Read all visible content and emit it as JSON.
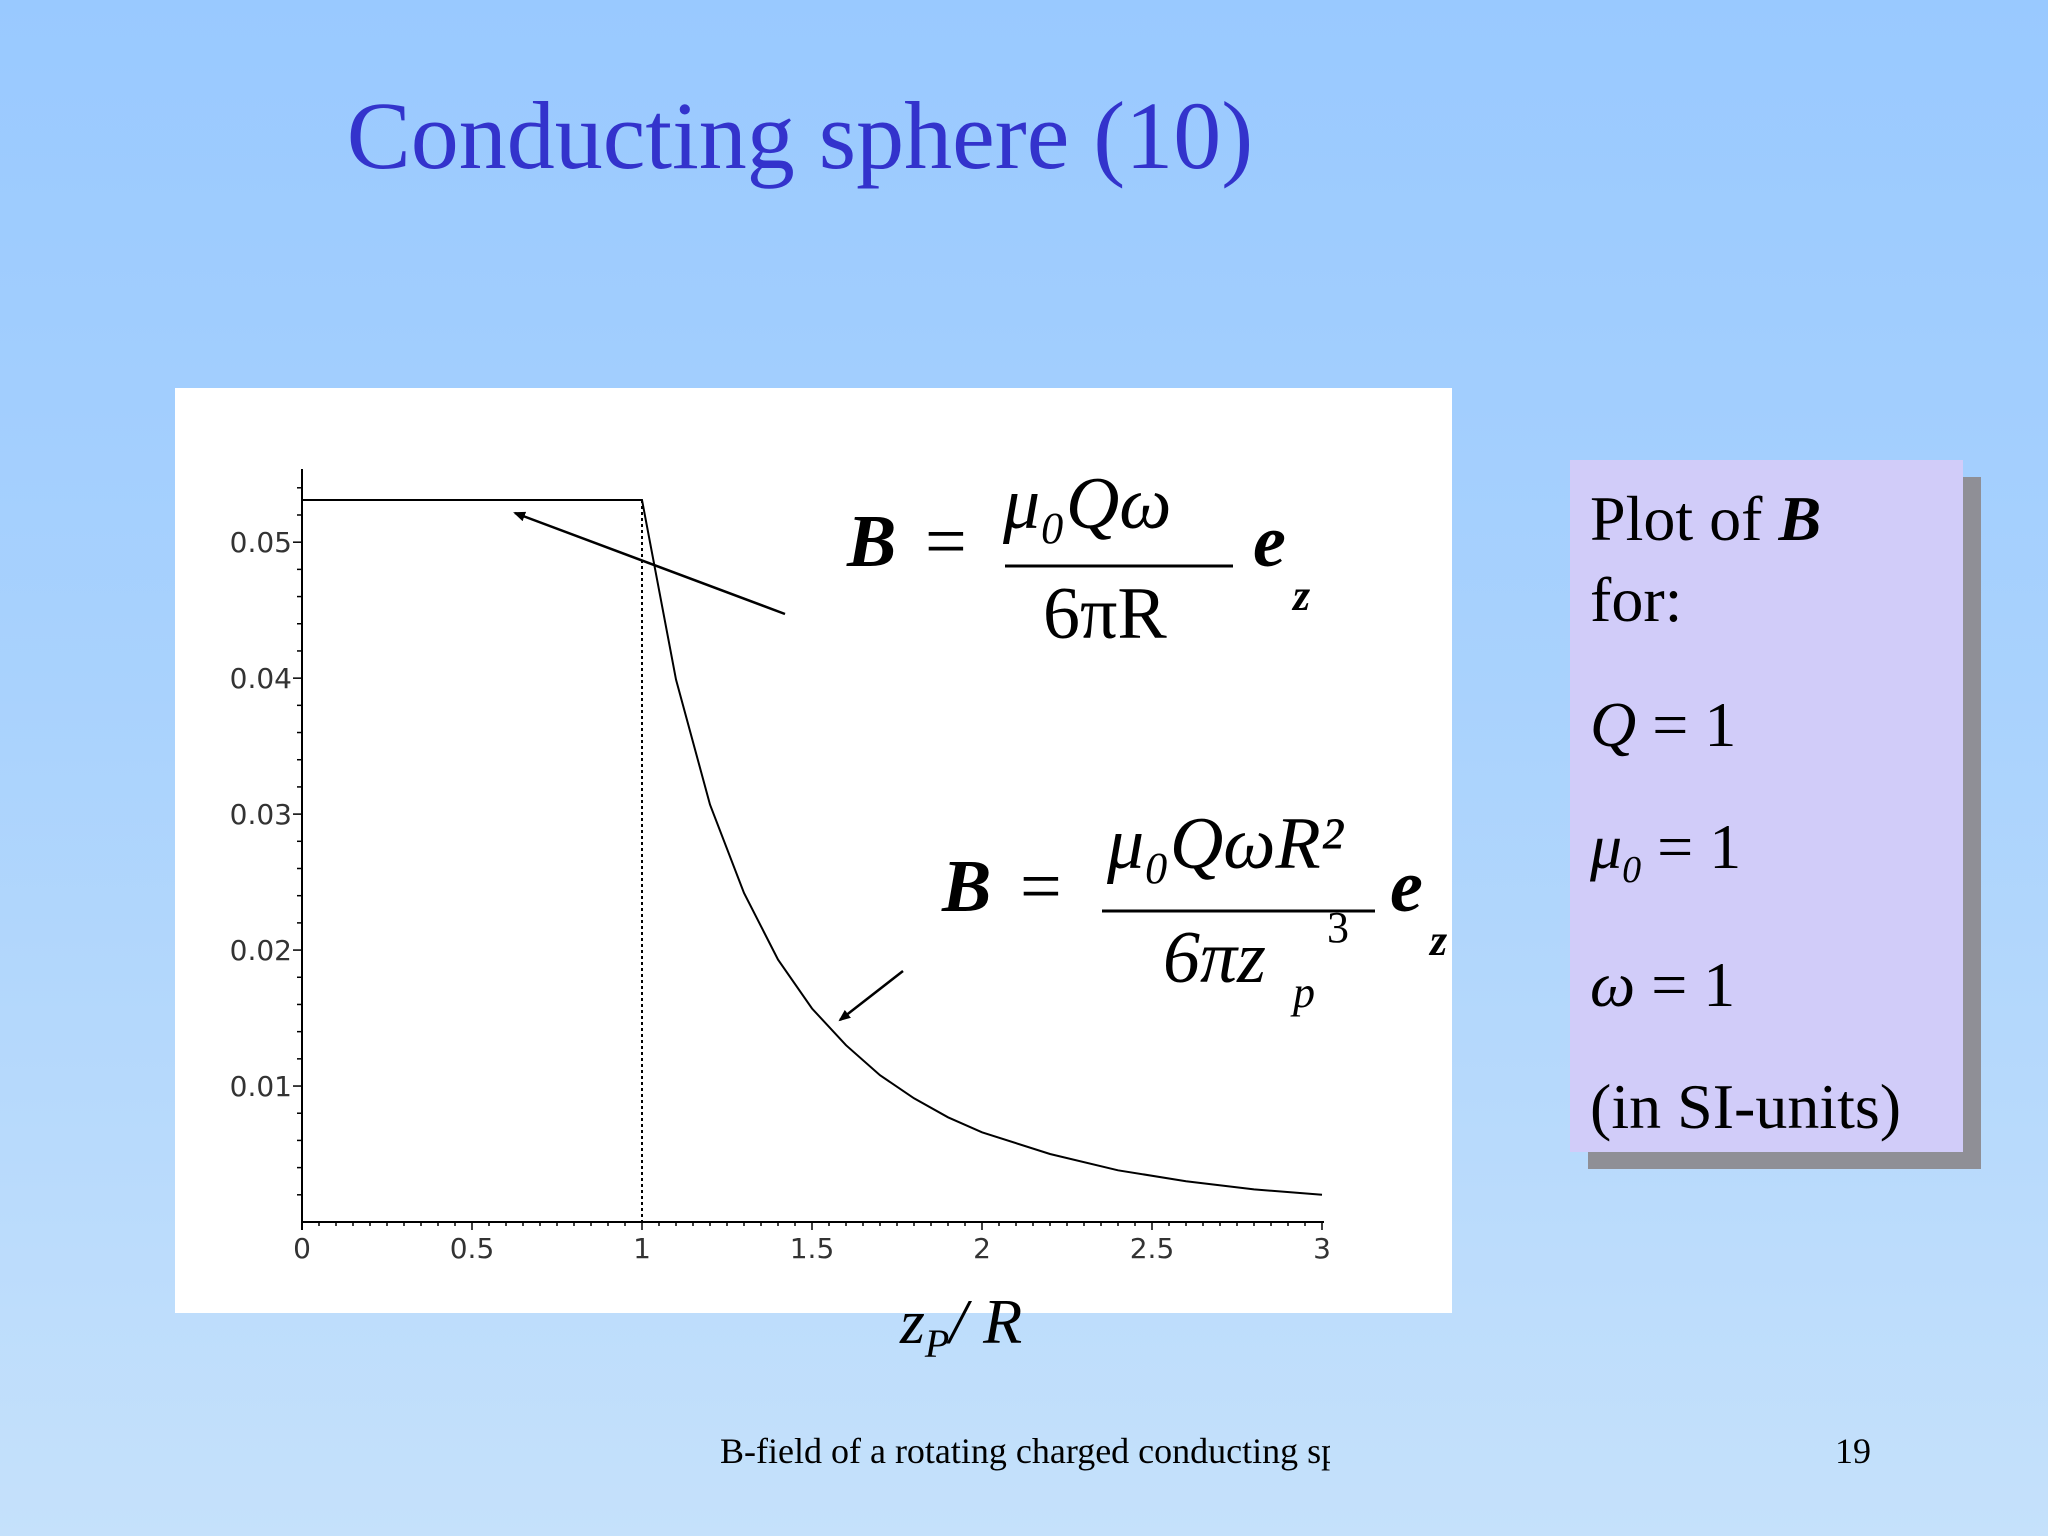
{
  "slide": {
    "title": "Conducting sphere (10)",
    "footer": "B-field of a rotating charged conducting sphere",
    "page_number": "19"
  },
  "formulas": {
    "inside": {
      "lhs": "B",
      "numerator": "μ₀Qω",
      "denominator": "6πR",
      "rhs": "e",
      "rhs_sub": "z"
    },
    "outside": {
      "lhs": "B",
      "numerator": "μ₀QωR²",
      "denominator": "6πz",
      "denominator_sub": "p",
      "denominator_sup": "3",
      "rhs": "e",
      "rhs_sub": "z"
    }
  },
  "info_box": {
    "line1_text": "Plot of ",
    "line1_symbol": "B",
    "line2": "for:",
    "q_symbol": "Q",
    "q_value": " = 1",
    "mu_symbol": "μ",
    "mu_sub": "0",
    "mu_value": " = 1",
    "omega_symbol": "ω",
    "omega_value": " = 1",
    "units": "(in SI-units)"
  },
  "chart_data": {
    "type": "line",
    "x_label_main": "z",
    "x_label_sub": "P",
    "x_label_rest": "/ R",
    "x_tick_labels": [
      "0",
      "0.5",
      "1",
      "1.5",
      "2",
      "2.5",
      "3"
    ],
    "y_tick_labels": [
      "0.01",
      "0.02",
      "0.03",
      "0.04",
      "0.05"
    ],
    "xlim": [
      0,
      3
    ],
    "ylim": [
      0,
      0.0545
    ],
    "boundary_x": 1,
    "series": [
      {
        "x": [
          0,
          0.5,
          1.0,
          1.1,
          1.2,
          1.3,
          1.4,
          1.5,
          1.6,
          1.7,
          1.8,
          1.9,
          2.0,
          2.2,
          2.4,
          2.6,
          2.8,
          3.0
        ],
        "y": [
          0.0531,
          0.0531,
          0.0531,
          0.0399,
          0.0307,
          0.0242,
          0.0193,
          0.0157,
          0.013,
          0.0108,
          0.0091,
          0.0077,
          0.0066,
          0.005,
          0.0038,
          0.003,
          0.0024,
          0.002
        ]
      }
    ],
    "grid": false,
    "legend": "none"
  }
}
